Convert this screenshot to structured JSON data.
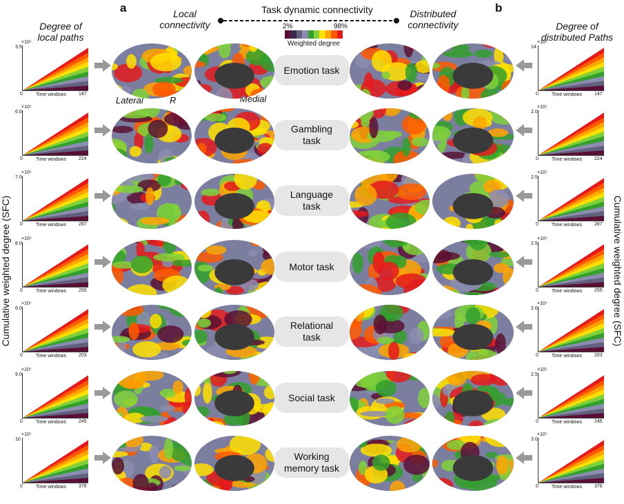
{
  "header": {
    "panel_a": "a",
    "panel_b": "b",
    "local_connectivity": "Local connectivity",
    "distributed_connectivity": "Distributed connectivity",
    "task_dynamic": "Task dynamic connectivity",
    "left_col_title": "Degree of local paths",
    "right_col_title": "Degree of distributed Paths"
  },
  "colorbar": {
    "low": "2%",
    "high": "98%",
    "label": "Weighted degree",
    "colors": [
      "#5a1034",
      "#3b2a4a",
      "#62607e",
      "#8b8db0",
      "#33a02c",
      "#7fd13a",
      "#ffe000",
      "#ffa500",
      "#ff5a00",
      "#e41a1c"
    ]
  },
  "side_labels": {
    "left": "Cumulative weighted degree (SFC)",
    "right": "Cumulative weighted degree (SFC)"
  },
  "brain_labels": {
    "lateral": "Lateral",
    "r": "R",
    "medial": "Medial"
  },
  "tasks": [
    {
      "name": "Emotion task",
      "left_ymax": "3.5",
      "left_exp": "×10⁵",
      "right_ymax": "14",
      "right_exp": "×10⁴",
      "xmax": "147",
      "xlabel": "Time windows"
    },
    {
      "name": "Gambling task",
      "left_ymax": "6.0",
      "left_exp": "×10⁵",
      "right_ymax": "2.0",
      "right_exp": "×10⁵",
      "xmax": "224",
      "xlabel": "Time windows"
    },
    {
      "name": "Language task",
      "left_ymax": "7.0",
      "left_exp": "×10⁵",
      "right_ymax": "2.5",
      "right_exp": "×10⁵",
      "xmax": "287",
      "xlabel": "Time windows"
    },
    {
      "name": "Motor task",
      "left_ymax": "8.0",
      "left_exp": "×10⁵",
      "right_ymax": "2.5",
      "right_exp": "×10⁵",
      "xmax": "255",
      "xlabel": "Time windows"
    },
    {
      "name": "Relational task",
      "left_ymax": "6.0",
      "left_exp": "×10⁵",
      "right_ymax": "2.0",
      "right_exp": "×10⁵",
      "xmax": "203",
      "xlabel": "Time windows"
    },
    {
      "name": "Social task",
      "left_ymax": "9.0",
      "left_exp": "×10⁵",
      "right_ymax": "2.5",
      "right_exp": "×10⁵",
      "xmax": "245",
      "xlabel": "Time windows"
    },
    {
      "name": "Working memory task",
      "left_ymax": "10",
      "left_exp": "×10⁵",
      "right_ymax": "3.0",
      "right_exp": "×10⁵",
      "xmax": "376",
      "xlabel": "Time windows"
    }
  ]
}
